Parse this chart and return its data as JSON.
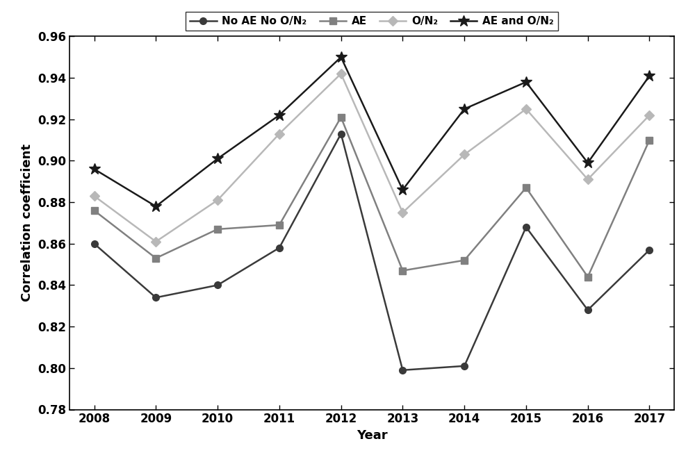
{
  "years": [
    2008,
    2009,
    2010,
    2011,
    2012,
    2013,
    2014,
    2015,
    2016,
    2017
  ],
  "series": {
    "No AE No O/N2": [
      0.86,
      0.834,
      0.84,
      0.858,
      0.913,
      0.799,
      0.801,
      0.868,
      0.828,
      0.857
    ],
    "AE": [
      0.876,
      0.853,
      0.867,
      0.869,
      0.921,
      0.847,
      0.852,
      0.887,
      0.844,
      0.91
    ],
    "O/N2": [
      0.883,
      0.861,
      0.881,
      0.913,
      0.942,
      0.875,
      0.903,
      0.925,
      0.891,
      0.922
    ],
    "AE and O/N2": [
      0.896,
      0.878,
      0.901,
      0.922,
      0.95,
      0.886,
      0.925,
      0.938,
      0.899,
      0.941
    ]
  },
  "colors": {
    "No AE No O/N2": "#3a3a3a",
    "AE": "#808080",
    "O/N2": "#b8b8b8",
    "AE and O/N2": "#1a1a1a"
  },
  "markers": {
    "No AE No O/N2": "o",
    "AE": "s",
    "O/N2": "D",
    "AE and O/N2": "*"
  },
  "marker_sizes": {
    "No AE No O/N2": 7,
    "AE": 7,
    "O/N2": 7,
    "AE and O/N2": 12
  },
  "linewidths": {
    "No AE No O/N2": 1.8,
    "AE": 1.8,
    "O/N2": 1.8,
    "AE and O/N2": 1.8
  },
  "legend_labels": [
    "No AE No O/N₂",
    "AE",
    "O/N₂",
    "AE and O/N₂"
  ],
  "xlabel": "Year",
  "ylabel": "Correlation coefficient",
  "ylim": [
    0.78,
    0.96
  ],
  "yticks": [
    0.78,
    0.8,
    0.82,
    0.84,
    0.86,
    0.88,
    0.9,
    0.92,
    0.94,
    0.96
  ],
  "background_color": "#ffffff",
  "grid": false,
  "figsize": [
    10.0,
    6.55
  ],
  "dpi": 100
}
